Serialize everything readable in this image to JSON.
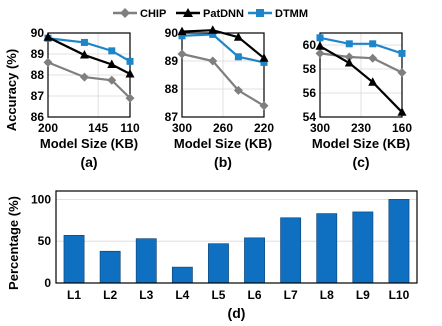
{
  "legend": [
    "CHIP",
    "PatDNN",
    "DTMM"
  ],
  "colors": {
    "CHIP": "#7f7f7f",
    "PatDNN": "#000000",
    "DTMM": "#1e86c8",
    "bar": "#0f6fc0"
  },
  "chart_data": [
    {
      "type": "line",
      "caption": "(a)",
      "xlabel": "Model Size (KB)",
      "ylabel": "Accuracy (%)",
      "x": [
        200,
        160,
        130,
        110
      ],
      "xticks": [
        200,
        145,
        110
      ],
      "xlim": [
        200,
        110
      ],
      "ylim": [
        86,
        90
      ],
      "yticks": [
        86,
        87,
        88,
        89,
        90
      ],
      "series": [
        {
          "name": "CHIP",
          "values": [
            88.6,
            87.9,
            87.75,
            86.9
          ]
        },
        {
          "name": "PatDNN",
          "values": [
            89.8,
            88.95,
            88.5,
            88.05
          ]
        },
        {
          "name": "DTMM",
          "values": [
            89.75,
            89.55,
            89.15,
            88.65
          ]
        }
      ]
    },
    {
      "type": "line",
      "caption": "(b)",
      "xlabel": "Model Size (KB)",
      "ylabel": "",
      "x": [
        300,
        270,
        245,
        220
      ],
      "xticks": [
        300,
        260,
        220
      ],
      "xlim": [
        300,
        220
      ],
      "ylim": [
        87,
        90
      ],
      "yticks": [
        87,
        88,
        89,
        90
      ],
      "series": [
        {
          "name": "CHIP",
          "values": [
            89.25,
            89.0,
            87.95,
            87.4
          ]
        },
        {
          "name": "PatDNN",
          "values": [
            90.05,
            90.1,
            89.85,
            89.1
          ]
        },
        {
          "name": "DTMM",
          "values": [
            89.9,
            89.95,
            89.15,
            88.95
          ]
        }
      ]
    },
    {
      "type": "line",
      "caption": "(c)",
      "xlabel": "Model Size (KB)",
      "ylabel": "",
      "x": [
        300,
        250,
        210,
        160
      ],
      "xticks": [
        300,
        230,
        160
      ],
      "xlim": [
        300,
        160
      ],
      "ylim": [
        54,
        61
      ],
      "yticks": [
        54,
        56,
        58,
        60
      ],
      "series": [
        {
          "name": "CHIP",
          "values": [
            59.3,
            59.0,
            58.9,
            57.7
          ]
        },
        {
          "name": "PatDNN",
          "values": [
            59.9,
            58.5,
            56.9,
            54.4
          ]
        },
        {
          "name": "DTMM",
          "values": [
            60.6,
            60.1,
            60.1,
            59.3
          ]
        }
      ]
    },
    {
      "type": "bar",
      "caption": "(d)",
      "xlabel": "",
      "ylabel": "Percentage (%)",
      "categories": [
        "L1",
        "L2",
        "L3",
        "L4",
        "L5",
        "L6",
        "L7",
        "L8",
        "L9",
        "L10"
      ],
      "values": [
        57,
        38,
        53,
        19,
        47,
        54,
        78,
        83,
        85,
        100
      ],
      "ylim": [
        0,
        110
      ],
      "yticks": [
        0,
        50,
        100
      ]
    }
  ]
}
